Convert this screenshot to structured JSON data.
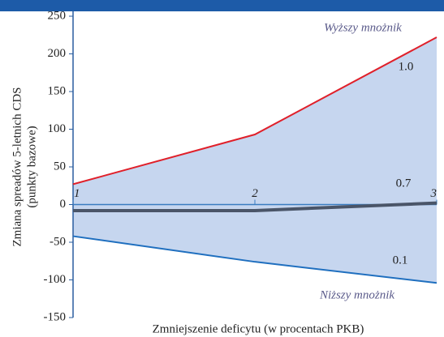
{
  "chart_data": {
    "type": "line",
    "y_label": [
      "Zmiana spreadów 5-letnich CDS",
      "(punkty bazowe)"
    ],
    "x_label": "Zmniejszenie deficytu (w procentach PKB)",
    "x": [
      1,
      2,
      3
    ],
    "xlim": [
      1,
      3
    ],
    "xticks": [
      1,
      2,
      3
    ],
    "ylim": [
      -150,
      250
    ],
    "yticks": [
      -150,
      -100,
      -50,
      0,
      50,
      100,
      150,
      200,
      250
    ],
    "series": [
      {
        "name": "1.0",
        "color": "#e0202a",
        "values": [
          27,
          93,
          222
        ]
      },
      {
        "name": "0.7",
        "color": "#4a5568",
        "values": [
          -8,
          -8,
          2
        ]
      },
      {
        "name": "0.1",
        "color": "#1f6fbf",
        "values": [
          -42,
          -76,
          -104
        ]
      }
    ],
    "band_color": "#c6d6ef",
    "annotations": [
      "Wyższy mnożnik",
      "Niższy mnożnik"
    ]
  }
}
